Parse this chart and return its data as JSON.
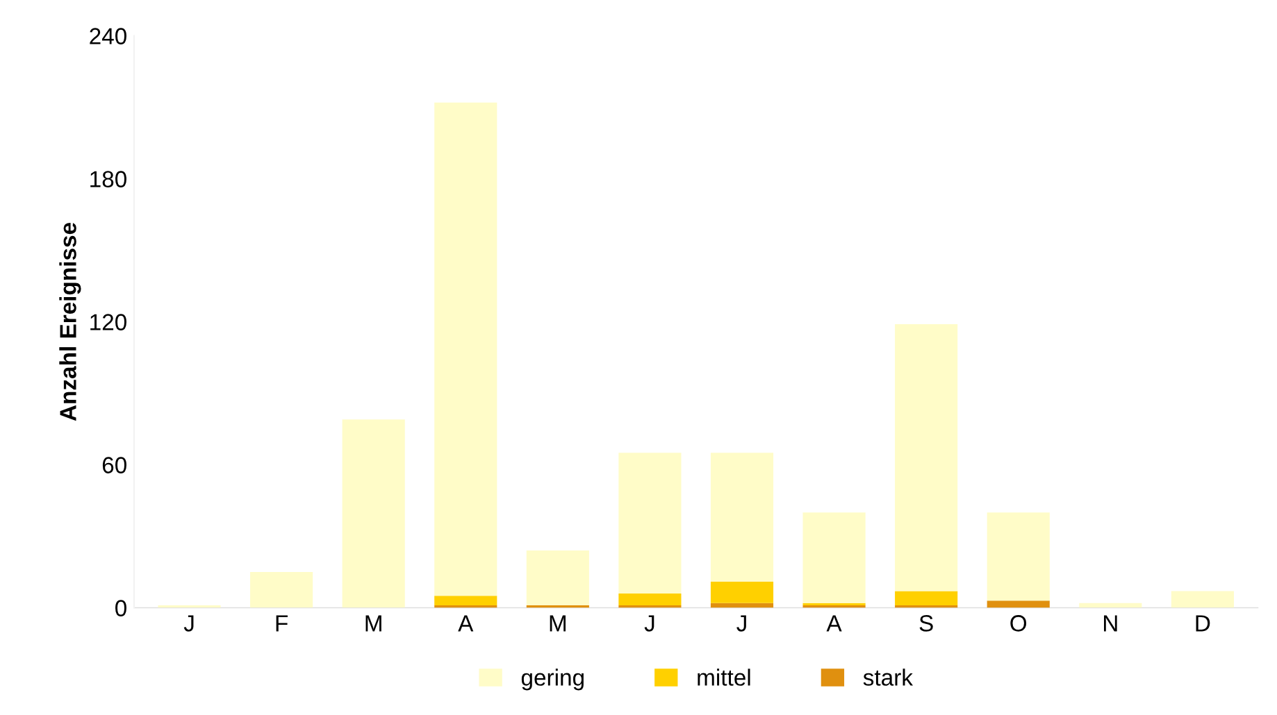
{
  "chart_data": {
    "type": "bar",
    "stacked": true,
    "ylabel": "Anzahl Ereignisse",
    "categories": [
      "J",
      "F",
      "M",
      "A",
      "M",
      "J",
      "J",
      "A",
      "S",
      "O",
      "N",
      "D"
    ],
    "series": [
      {
        "name": "stark",
        "color": "#e0900f",
        "values": [
          0,
          0,
          0,
          1,
          1,
          1,
          2,
          1,
          1,
          3,
          0,
          0
        ]
      },
      {
        "name": "mittel",
        "color": "#ffd000",
        "values": [
          0,
          0,
          0,
          4,
          0,
          5,
          9,
          1,
          6,
          0,
          0,
          0
        ]
      },
      {
        "name": "gering",
        "color": "#fffcc8",
        "values": [
          1,
          15,
          79,
          207,
          23,
          59,
          54,
          38,
          112,
          37,
          2,
          7
        ]
      }
    ],
    "ylim": [
      0,
      240
    ],
    "yticks": [
      0,
      60,
      120,
      180,
      240
    ],
    "legend": "bottom",
    "grid": false
  }
}
